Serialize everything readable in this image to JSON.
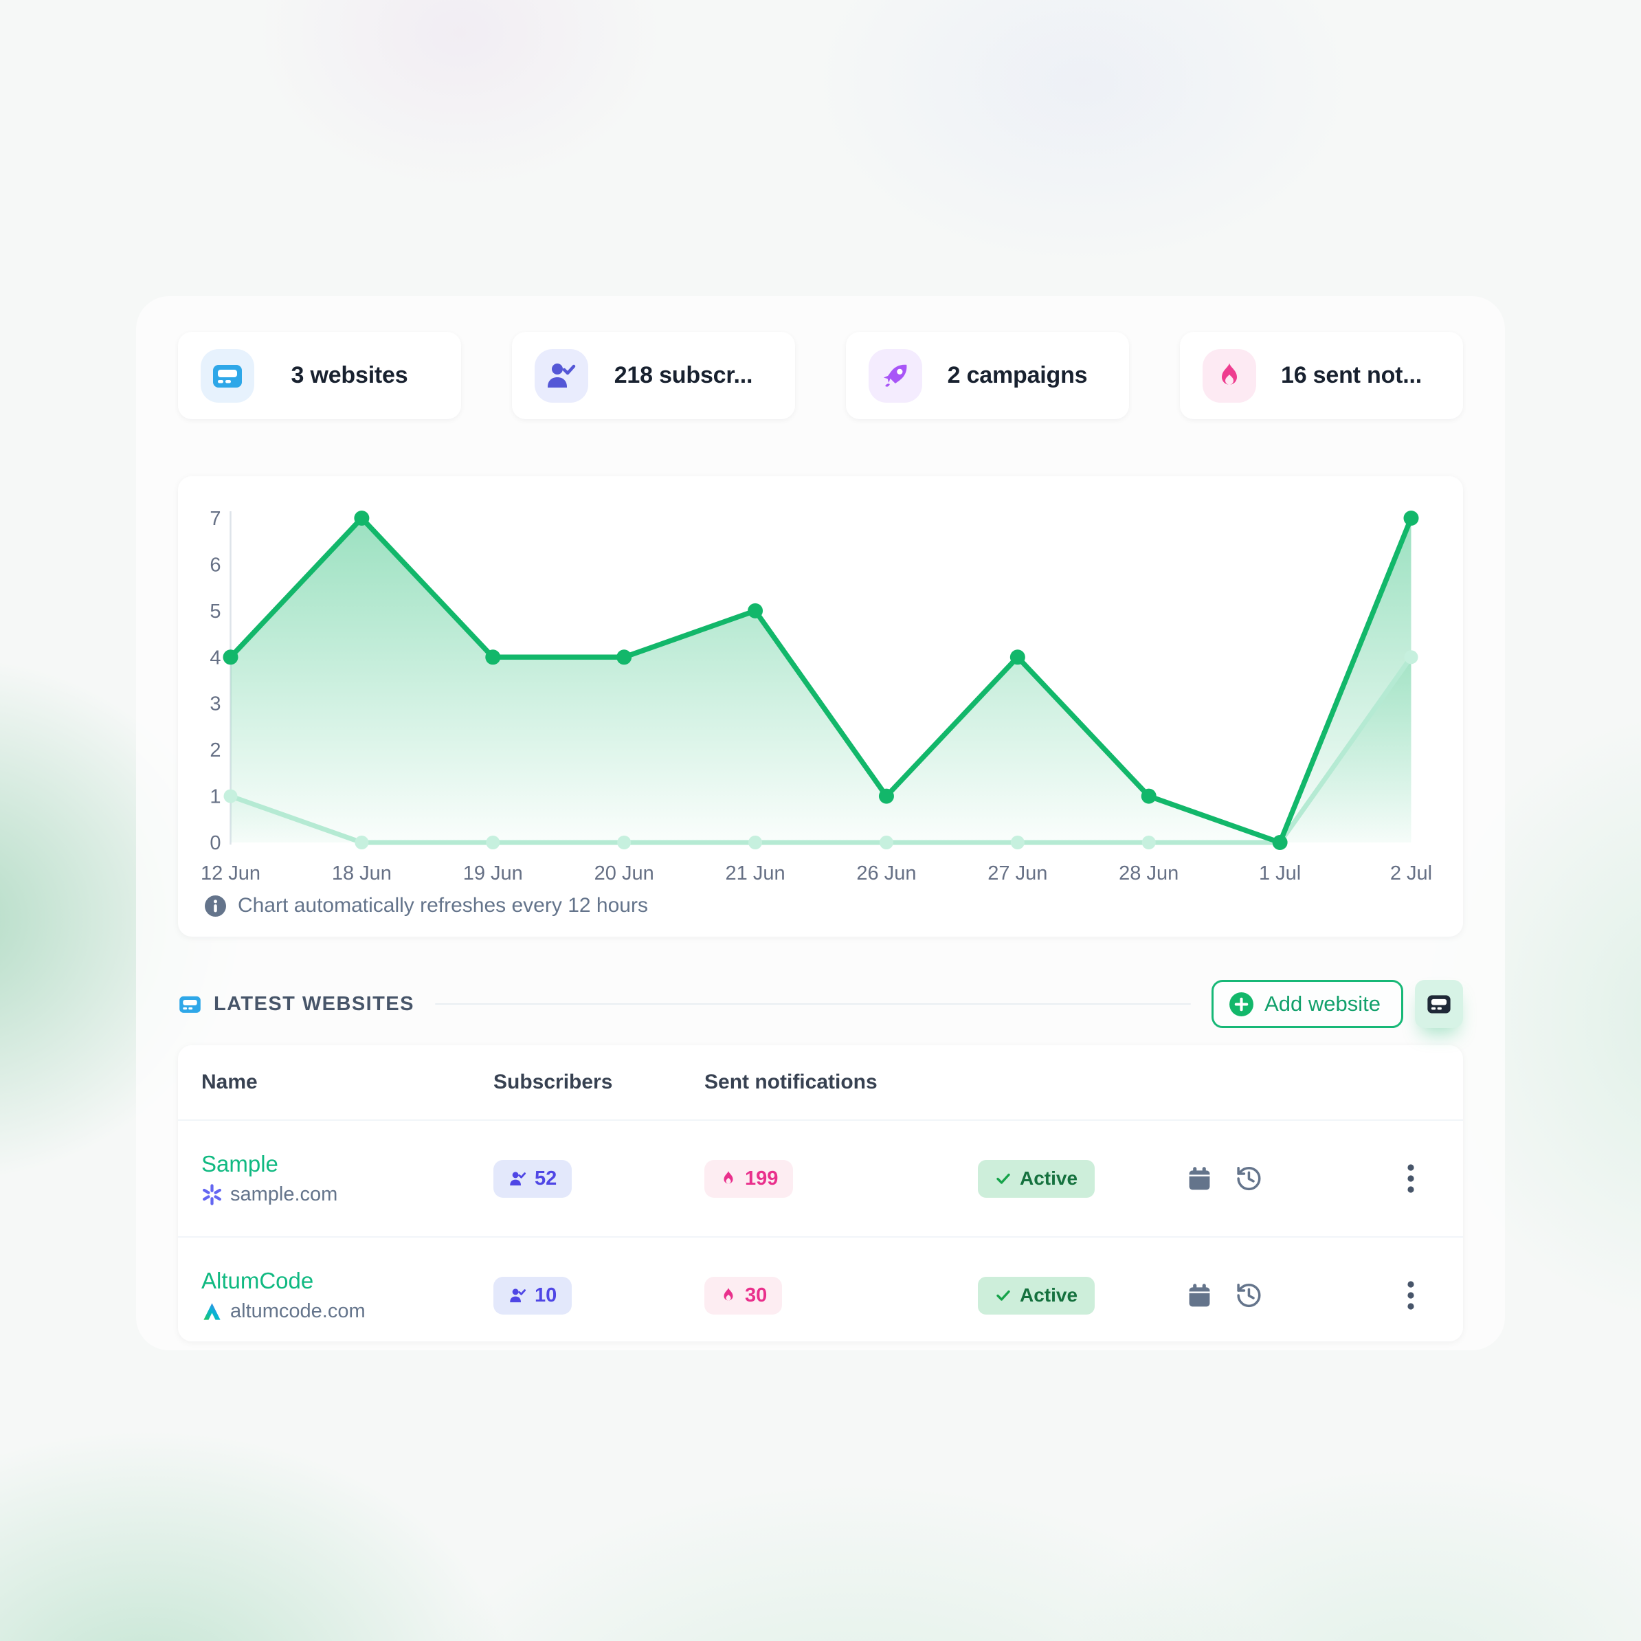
{
  "stats": [
    {
      "label": "3 websites",
      "icon": "browser-icon"
    },
    {
      "label": "218 subscr...",
      "icon": "user-check-icon"
    },
    {
      "label": "2 campaigns",
      "icon": "rocket-icon"
    },
    {
      "label": "16 sent not...",
      "icon": "flame-icon"
    }
  ],
  "chart_data": {
    "type": "area",
    "x": [
      "12 Jun",
      "18 Jun",
      "19 Jun",
      "20 Jun",
      "21 Jun",
      "26 Jun",
      "27 Jun",
      "28 Jun",
      "1 Jul",
      "2 Jul"
    ],
    "series": [
      {
        "name": "series-dark-green",
        "values": [
          4,
          7,
          4,
          4,
          5,
          1,
          4,
          1,
          0,
          7
        ],
        "color": "#12b76a"
      },
      {
        "name": "series-light-green",
        "values": [
          1,
          0,
          0,
          0,
          0,
          0,
          0,
          0,
          0,
          4
        ],
        "color": "#b5ead3"
      }
    ],
    "ylim": [
      0,
      7
    ],
    "y_ticks": [
      0,
      1,
      2,
      3,
      4,
      5,
      6,
      7
    ],
    "grid": false,
    "legend": false,
    "title": "",
    "xlabel": "",
    "ylabel": "",
    "note": "Chart automatically refreshes every 12 hours"
  },
  "websites_section": {
    "title": "LATEST WEBSITES",
    "add_button": "Add website"
  },
  "table": {
    "headers": {
      "name": "Name",
      "subscribers": "Subscribers",
      "notifications": "Sent notifications"
    },
    "rows": [
      {
        "name": "Sample",
        "domain": "sample.com",
        "subscribers": "52",
        "notifications": "199",
        "status": "Active"
      },
      {
        "name": "AltumCode",
        "domain": "altumcode.com",
        "subscribers": "10",
        "notifications": "30",
        "status": "Active"
      }
    ]
  },
  "colors": {
    "accent_green": "#12b76a",
    "link_green": "#10b981",
    "blue": "#2ea7e8",
    "indigo": "#5457d6",
    "purple": "#a855f7",
    "pink": "#ee3d8f",
    "muted_text": "#64748b"
  }
}
